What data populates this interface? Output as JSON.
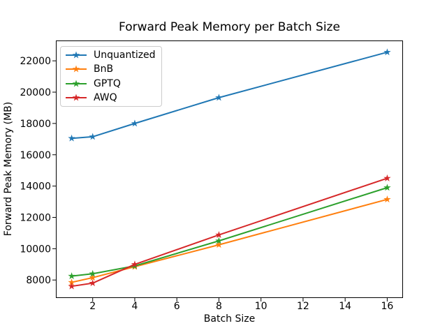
{
  "chart_data": {
    "type": "line",
    "title": "Forward Peak Memory per Batch Size",
    "xlabel": "Batch Size",
    "ylabel": "Forward Peak Memory (MB)",
    "x": [
      1,
      2,
      4,
      8,
      16
    ],
    "series": [
      {
        "name": "Unquantized",
        "color": "#1f77b4",
        "marker": "star",
        "values": [
          17050,
          17150,
          18000,
          19650,
          22550
        ]
      },
      {
        "name": "BnB",
        "color": "#ff7f0e",
        "marker": "star",
        "values": [
          7850,
          8150,
          8850,
          10250,
          13150
        ]
      },
      {
        "name": "GPTQ",
        "color": "#2ca02c",
        "marker": "star",
        "values": [
          8250,
          8400,
          8900,
          10500,
          13900
        ]
      },
      {
        "name": "AWQ",
        "color": "#d62728",
        "marker": "star",
        "values": [
          7600,
          7800,
          9000,
          10880,
          14500
        ]
      }
    ],
    "xlim": [
      0.25,
      16.75
    ],
    "ylim": [
      6850,
      23300
    ],
    "xticks": [
      2,
      4,
      6,
      8,
      10,
      12,
      14,
      16
    ],
    "yticks": [
      8000,
      10000,
      12000,
      14000,
      16000,
      18000,
      20000,
      22000
    ],
    "grid": false,
    "legend": {
      "position": "upper-left",
      "entries": [
        "Unquantized",
        "BnB",
        "GPTQ",
        "AWQ"
      ]
    },
    "axis_color": "#000000",
    "background_color": "#ffffff"
  }
}
